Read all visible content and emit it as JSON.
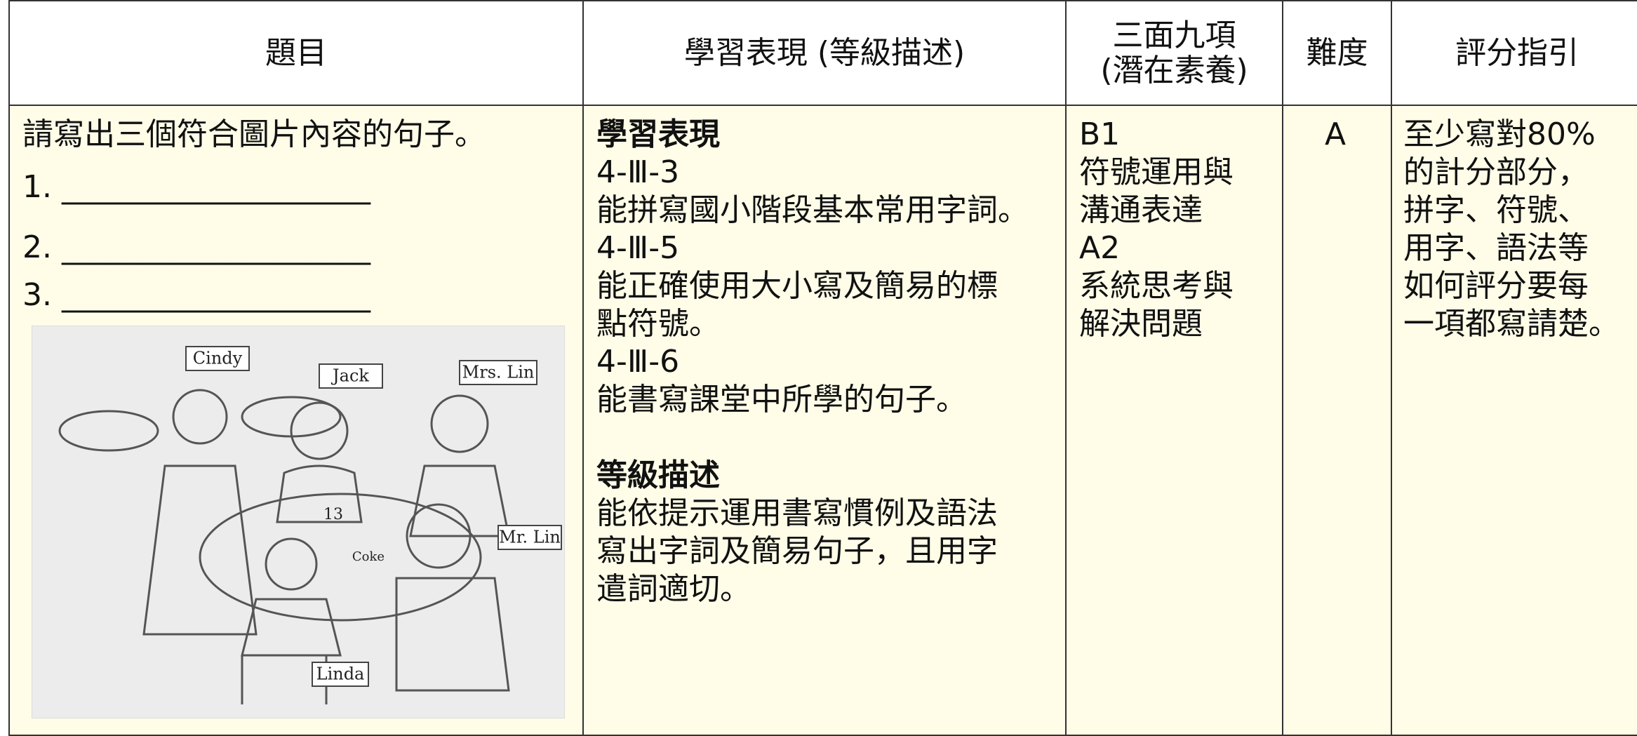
{
  "table": {
    "header": [
      [
        "題目"
      ],
      [
        "學習表現 (等級描述)"
      ],
      [
        "三面九項",
        "(潛在素養)"
      ],
      [
        "難度"
      ],
      [
        "評分指引"
      ]
    ],
    "question": {
      "prompt": "請寫出三個符合圖片內容的句子。",
      "blanks": [
        "1. ____________________",
        "2. ____________________",
        "3. ____________________"
      ],
      "illustration_labels": [
        "Cindy",
        "Jack",
        "Mrs. Lin",
        "Mr. Lin",
        "Linda",
        "Coke",
        "13"
      ]
    },
    "performance": {
      "heading": "學習表現",
      "lines": [
        "4-Ⅲ-3",
        "能拼寫國小階段基本常用字詞。",
        "4-Ⅲ-5",
        "能正確使用大小寫及簡易的標",
        "點符號。",
        "4-Ⅲ-6",
        "能書寫課堂中所學的句子。"
      ]
    },
    "grading": {
      "heading": "等級描述",
      "lines": [
        "能依提示運用書寫慣例及語法",
        "寫出字詞及簡易句子，且用字",
        "遣詞適切。"
      ]
    },
    "competencies": [
      "B1",
      "符號運用與",
      "溝通表達",
      "A2",
      "系統思考與",
      "解決問題"
    ],
    "difficulty": "A",
    "scoring": [
      "至少寫對80%",
      "的計分部分，",
      "拼字、符號、",
      "用字、語法等",
      "如何評分要每",
      "一項都寫請楚。"
    ]
  }
}
